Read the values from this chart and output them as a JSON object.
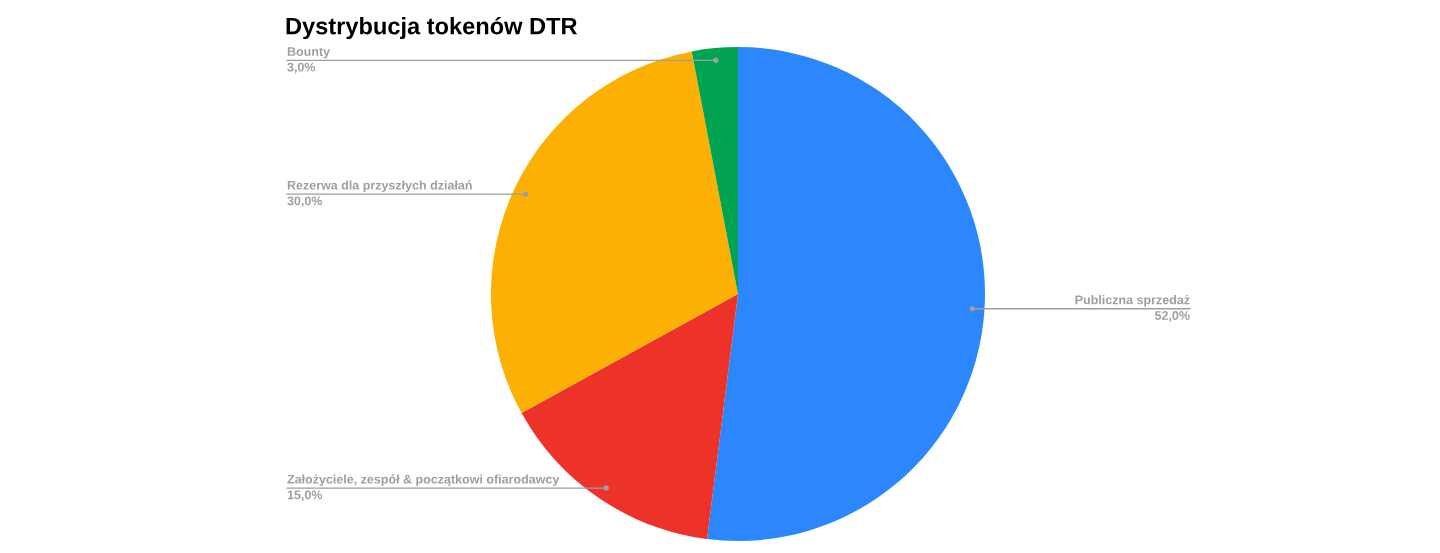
{
  "chart_data": {
    "type": "pie",
    "title": "Dystrybucja tokenów DTR",
    "categories": [
      "Publiczna sprzedaż",
      "Założyciele, zespół & początkowi ofiarodawcy",
      "Rezerwa dla przyszłych działań",
      "Bounty"
    ],
    "values": [
      52,
      15,
      30,
      3
    ],
    "colors": [
      "#2d87fc",
      "#ec3229",
      "#fbb003",
      "#00a352"
    ],
    "value_labels": [
      "52,0%",
      "15,0%",
      "30,0%",
      "3,0%"
    ],
    "legend": false
  }
}
